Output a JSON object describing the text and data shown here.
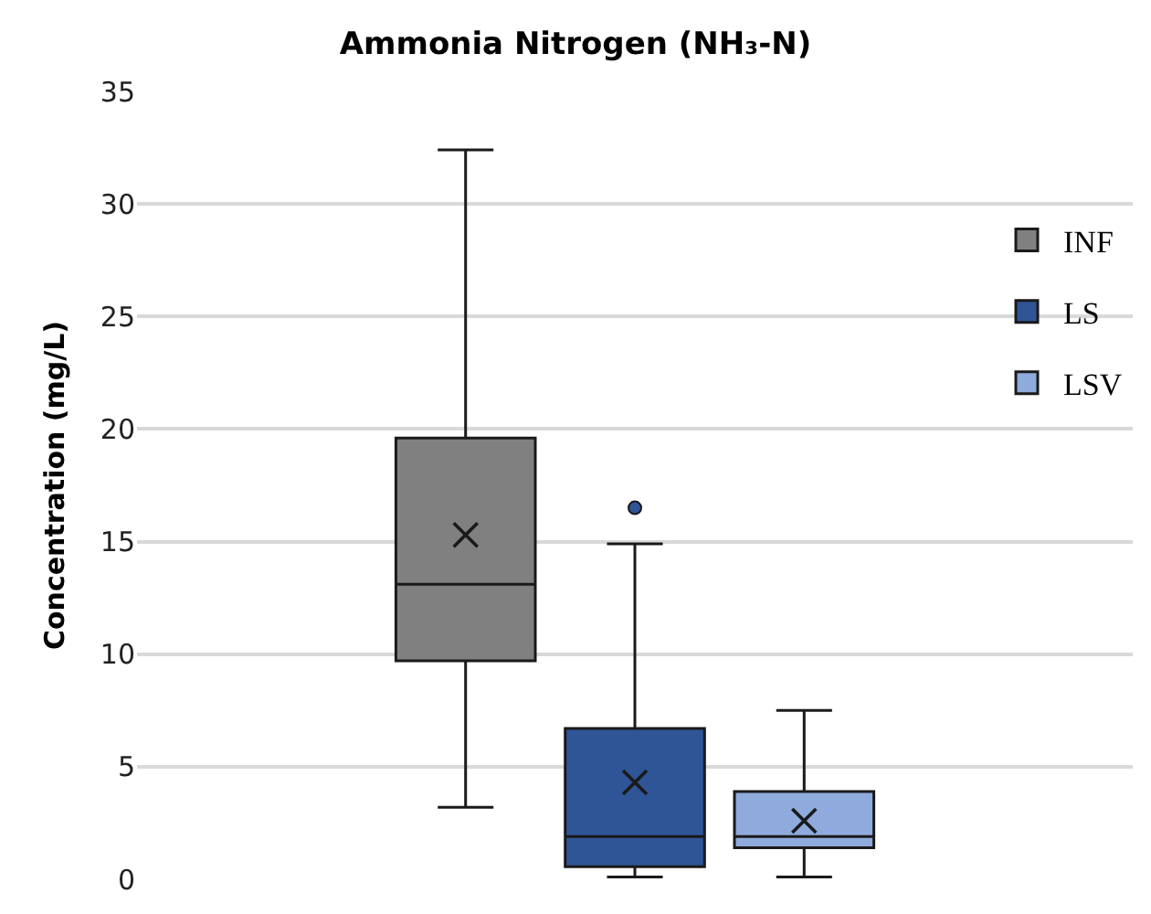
{
  "chart_data": {
    "type": "box",
    "title": "Ammonia Nitrogen (NH₃-N)",
    "ylabel": "Concentration (mg/L)",
    "categories": [
      null
    ],
    "series": [
      {
        "name": "INF",
        "color": "#808080",
        "boxes": [
          {
            "low": 3.2,
            "q1": 9.7,
            "median": 13.1,
            "q3": 19.6,
            "high": 32.4,
            "mean": 15.3
          }
        ]
      },
      {
        "name": "LS",
        "color": "#2f5597",
        "boxes": [
          {
            "low": 0.1,
            "q1": 0.56,
            "median": 1.9,
            "q3": 6.7,
            "high": 14.9,
            "mean": 4.3,
            "outliers": [
              16.5
            ]
          }
        ]
      },
      {
        "name": "LSV",
        "color": "#8faadc",
        "boxes": [
          {
            "low": 0.1,
            "q1": 1.4,
            "median": 1.9,
            "q3": 3.9,
            "high": 7.5,
            "mean": 2.6
          }
        ]
      }
    ],
    "ylim": [
      0,
      35
    ],
    "yticks": [
      0,
      5,
      10,
      15,
      20,
      25,
      30,
      35
    ],
    "grid": "y",
    "legend": "right",
    "marker": "cross"
  }
}
